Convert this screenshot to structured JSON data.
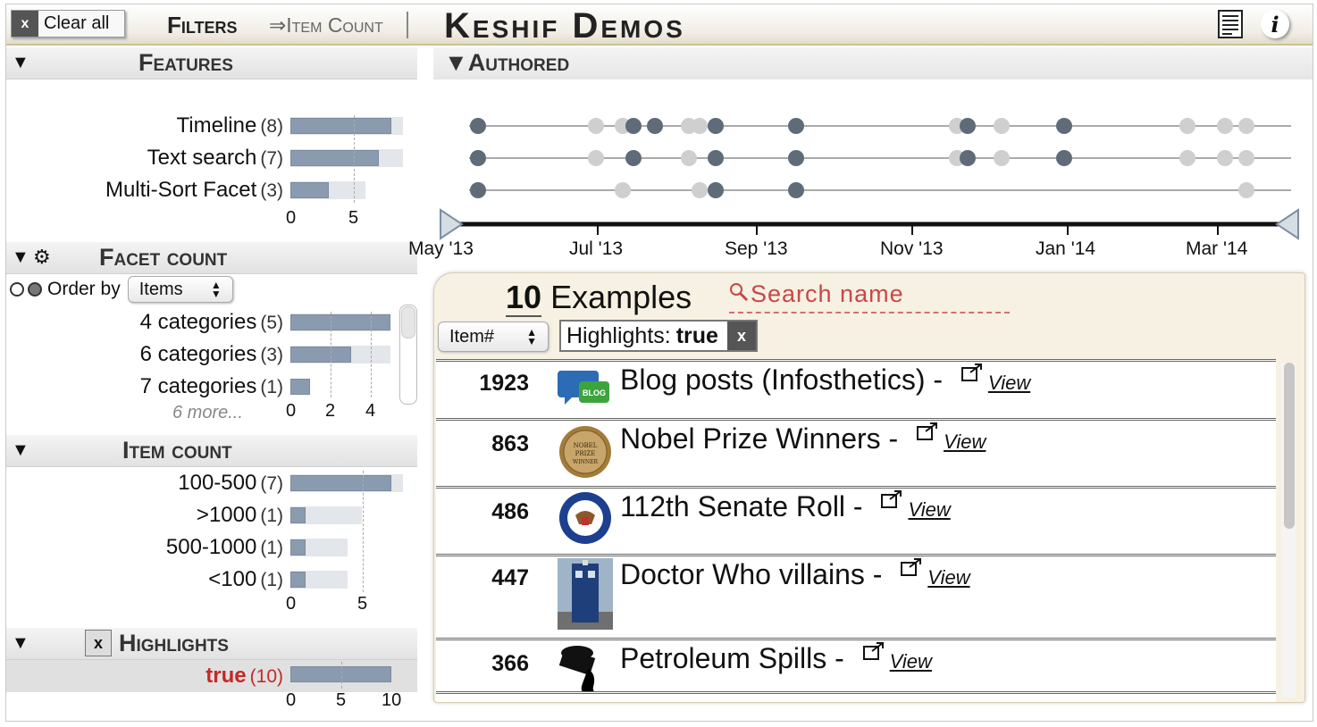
{
  "topbar": {
    "clear_all_x": "x",
    "clear_all_label": "Clear all",
    "filters_label": "Filters",
    "item_count_link": "⇒Item Count",
    "app_title": "Keshif Demos",
    "info_label": "i"
  },
  "facets": {
    "features": {
      "title": "Features",
      "rows": [
        {
          "label": "Timeline",
          "count": "(8)",
          "value": 8
        },
        {
          "label": "Text search",
          "count": "(7)",
          "value": 7
        },
        {
          "label": "Multi-Sort Facet",
          "count": "(3)",
          "value": 3
        }
      ],
      "axis": [
        "0",
        "5"
      ]
    },
    "facet_count": {
      "title": "Facet count",
      "order_by_label": "Order by",
      "order_by_value": "Items",
      "rows": [
        {
          "label": "4 categories",
          "count": "(5)",
          "value": 5
        },
        {
          "label": "6 categories",
          "count": "(3)",
          "value": 3
        },
        {
          "label": "7 categories",
          "count": "(1)",
          "value": 1
        }
      ],
      "more": "6 more...",
      "axis": [
        "0",
        "2",
        "4"
      ]
    },
    "item_count": {
      "title": "Item count",
      "rows": [
        {
          "label": "100-500",
          "count": "(7)",
          "value": 7
        },
        {
          "label": ">1000",
          "count": "(1)",
          "value": 1
        },
        {
          "label": "500-1000",
          "count": "(1)",
          "value": 1
        },
        {
          "label": "<100",
          "count": "(1)",
          "value": 1
        }
      ],
      "axis": [
        "0",
        "5"
      ]
    },
    "highlights": {
      "title": "Highlights",
      "x_label": "x",
      "rows": [
        {
          "label": "true",
          "count": "(10)",
          "value": 10
        }
      ],
      "axis": [
        "0",
        "5",
        "10"
      ]
    }
  },
  "authored": {
    "title": "Authored",
    "ticks": [
      "May '13",
      "Jul '13",
      "Sep '13",
      "Nov '13",
      "Jan '14",
      "Mar '14"
    ]
  },
  "list": {
    "count": "10",
    "count_label": "Examples",
    "search_placeholder": "Search name",
    "sort_value": "Item#",
    "filter_chip_key": "Highlights:",
    "filter_chip_value": "true",
    "filter_chip_x": "x",
    "view_label": "View",
    "items": [
      {
        "num": "1923",
        "title": "Blog posts (Infosthetics) -",
        "thumb": "blog-icon"
      },
      {
        "num": "863",
        "title": "Nobel Prize Winners -",
        "thumb": "nobel-medal-icon"
      },
      {
        "num": "486",
        "title": "112th Senate Roll -",
        "thumb": "senate-seal-icon"
      },
      {
        "num": "447",
        "title": "Doctor Who villains -",
        "thumb": "tardis-icon"
      },
      {
        "num": "366",
        "title": "Petroleum Spills -",
        "thumb": "oil-barrel-icon"
      }
    ]
  },
  "colors": {
    "bar": "#8a9bb0",
    "accent": "#c62828",
    "header_gold": "#cdbf98",
    "dot_dark": "#5f6b78",
    "dot_light": "#cfcfcf"
  }
}
